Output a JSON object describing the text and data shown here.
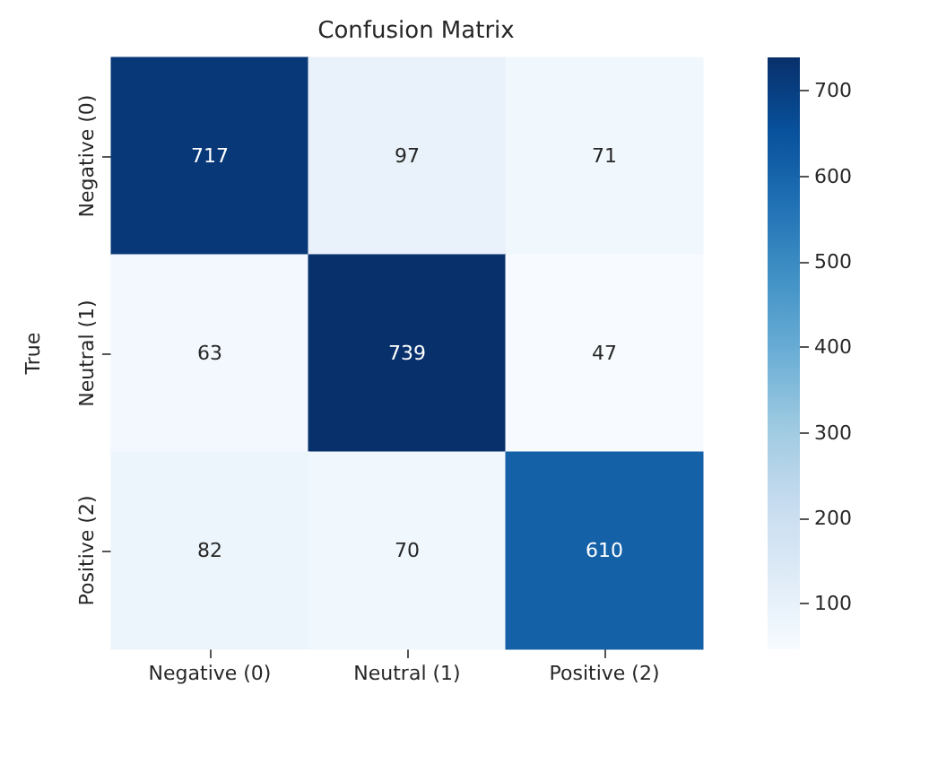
{
  "chart_data": {
    "type": "heatmap",
    "title": "Confusion Matrix",
    "ylabel": "True",
    "categories": [
      "Negative (0)",
      "Neutral (1)",
      "Positive (2)"
    ],
    "y_categories": [
      "Negative (0)",
      "Neutral (1)",
      "Positive (2)"
    ],
    "cells": [
      [
        717,
        97,
        71
      ],
      [
        63,
        739,
        47
      ],
      [
        82,
        70,
        610
      ]
    ],
    "clim": [
      47,
      739
    ],
    "cticks": [
      100,
      200,
      300,
      400,
      500,
      600,
      700
    ],
    "data_labels": true
  }
}
